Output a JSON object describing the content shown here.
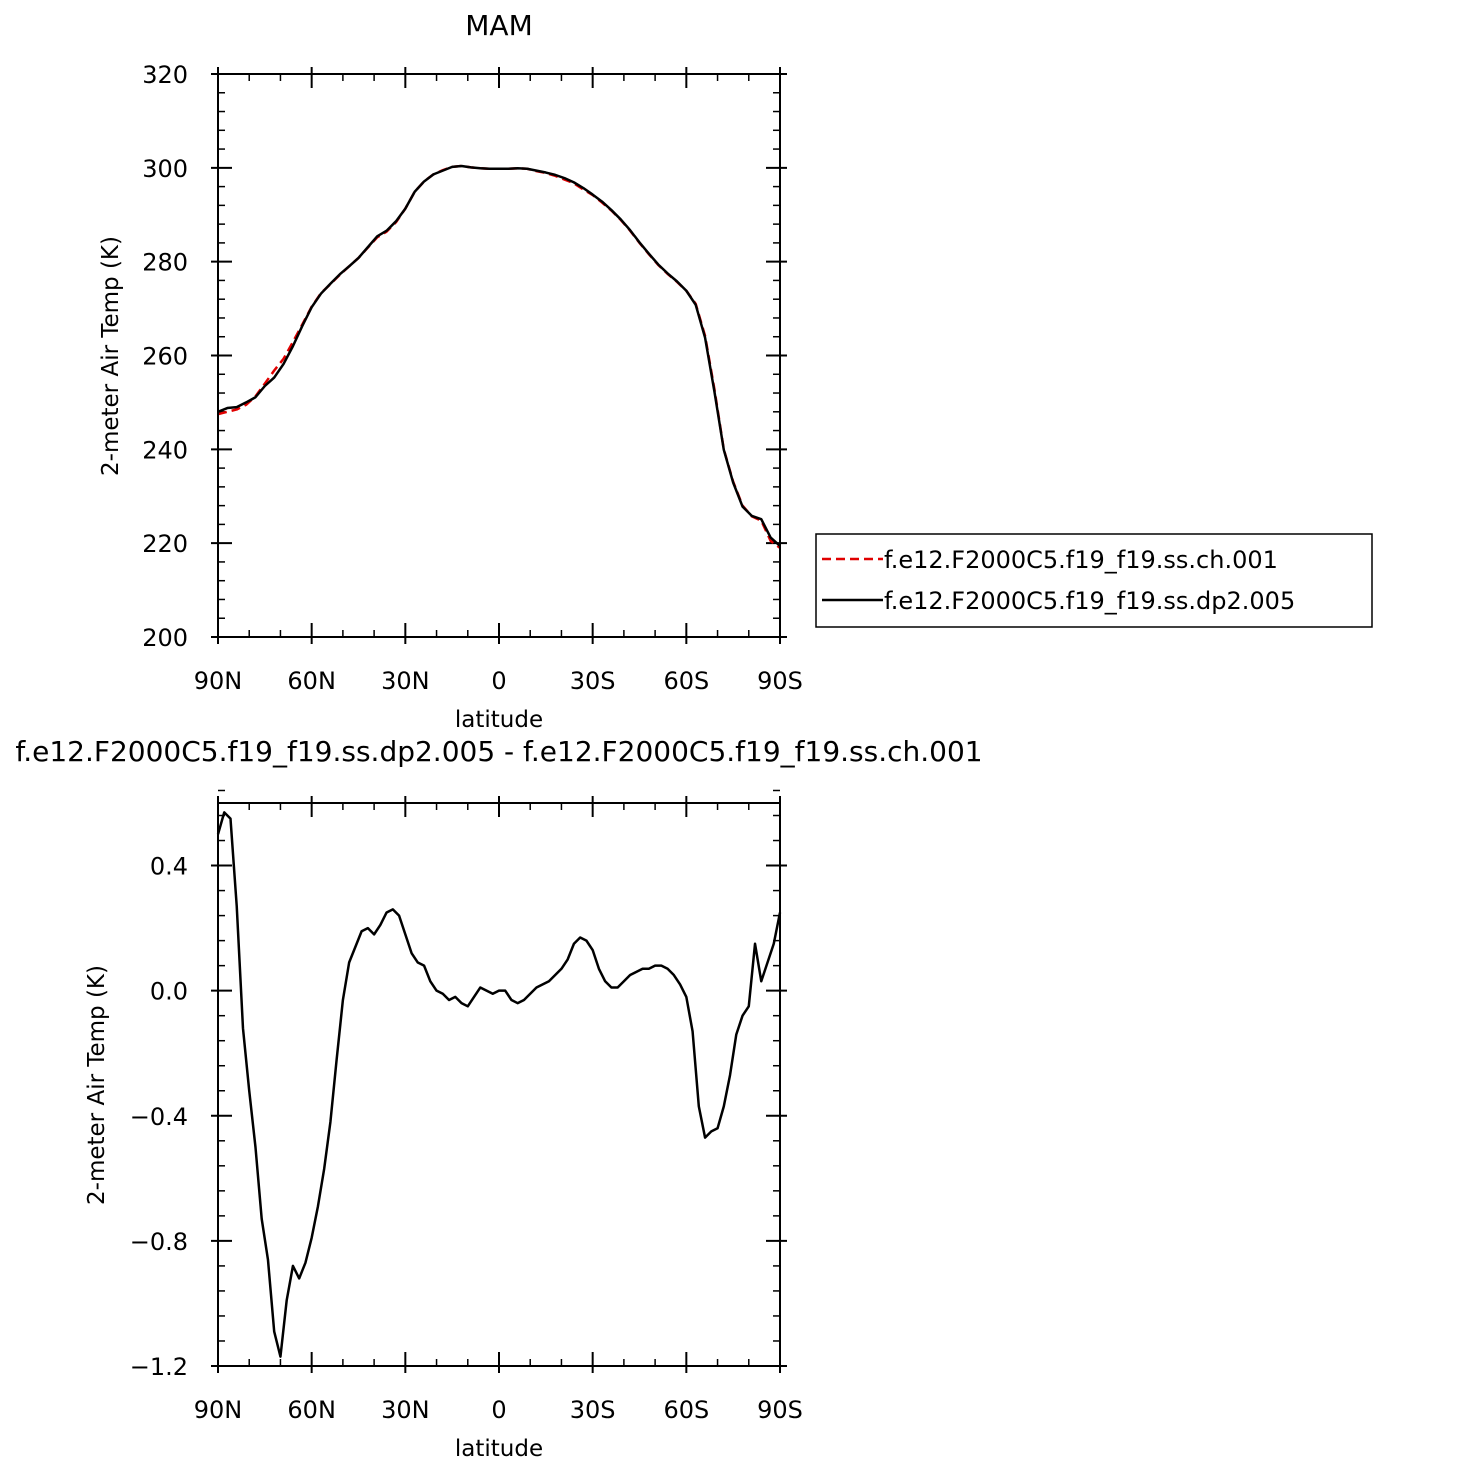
{
  "chart_data": [
    {
      "type": "line",
      "title": "MAM",
      "xlabel": "latitude",
      "ylabel": "2-meter Air Temp (K)",
      "xlim": [
        90,
        -90
      ],
      "ylim": [
        200,
        320
      ],
      "xticks": [
        {
          "value": 90,
          "label": "90N"
        },
        {
          "value": 60,
          "label": "60N"
        },
        {
          "value": 30,
          "label": "30N"
        },
        {
          "value": 0,
          "label": "0"
        },
        {
          "value": -30,
          "label": "30S"
        },
        {
          "value": -60,
          "label": "60S"
        },
        {
          "value": -90,
          "label": "90S"
        }
      ],
      "yticks": [
        {
          "value": 200,
          "label": "200"
        },
        {
          "value": 220,
          "label": "220"
        },
        {
          "value": 240,
          "label": "240"
        },
        {
          "value": 260,
          "label": "260"
        },
        {
          "value": 280,
          "label": "280"
        },
        {
          "value": 300,
          "label": "300"
        },
        {
          "value": 320,
          "label": "320"
        }
      ],
      "legend_position": "right",
      "series": [
        {
          "name": "f.e12.F2000C5.f19_f19.ss.ch.001",
          "color": "#e00000",
          "dash": "dashed",
          "x": [
            90,
            87,
            84,
            81,
            78,
            75,
            72,
            69,
            66,
            63,
            60,
            57,
            54,
            51,
            48,
            45,
            42,
            39,
            36,
            33,
            30,
            27,
            24,
            21,
            18,
            15,
            12,
            9,
            6,
            3,
            0,
            -3,
            -6,
            -9,
            -12,
            -15,
            -18,
            -21,
            -24,
            -27,
            -30,
            -33,
            -36,
            -39,
            -42,
            -45,
            -48,
            -51,
            -54,
            -57,
            -60,
            -63,
            -66,
            -69,
            -72,
            -75,
            -78,
            -81,
            -84,
            -87,
            -90
          ],
          "y": [
            247.5,
            248,
            248.5,
            249.5,
            251.3,
            254,
            256.8,
            259.3,
            262.9,
            266.6,
            270.4,
            273.3,
            275.2,
            277.2,
            279,
            280.8,
            283,
            285.2,
            286.4,
            288.4,
            291.3,
            294.9,
            297.1,
            298.6,
            299.5,
            300.2,
            300.4,
            300.1,
            299.9,
            299.8,
            299.8,
            299.8,
            299.9,
            299.8,
            299.3,
            298.9,
            298.3,
            297.5,
            296.7,
            295.4,
            294.2,
            292.6,
            290.9,
            288.9,
            286.6,
            284,
            281.6,
            279.3,
            277.4,
            275.7,
            273.8,
            271,
            264.2,
            252.8,
            240,
            233.1,
            228,
            225.7,
            224.8,
            220.5,
            219
          ]
        },
        {
          "name": "f.e12.F2000C5.f19_f19.ss.dp2.005",
          "color": "#000000",
          "dash": "solid",
          "x": [
            90,
            87,
            84,
            81,
            78,
            75,
            72,
            69,
            66,
            63,
            60,
            57,
            54,
            51,
            48,
            45,
            42,
            39,
            36,
            33,
            30,
            27,
            24,
            21,
            18,
            15,
            12,
            9,
            6,
            3,
            0,
            -3,
            -6,
            -9,
            -12,
            -15,
            -18,
            -21,
            -24,
            -27,
            -30,
            -33,
            -36,
            -39,
            -42,
            -45,
            -48,
            -51,
            -54,
            -57,
            -60,
            -63,
            -66,
            -69,
            -72,
            -75,
            -78,
            -81,
            -84,
            -87,
            -90
          ],
          "y": [
            248,
            248.8,
            249,
            250,
            251.1,
            253.5,
            255.3,
            258.2,
            262,
            266.3,
            270.3,
            273.2,
            275.3,
            277.3,
            279,
            280.8,
            283.1,
            285.4,
            286.6,
            288.6,
            291.3,
            294.9,
            297.1,
            298.6,
            299.4,
            300.2,
            300.4,
            300.1,
            299.9,
            299.8,
            299.8,
            299.8,
            299.9,
            299.8,
            299.4,
            299,
            298.5,
            297.8,
            296.9,
            295.7,
            294.3,
            292.8,
            291,
            289,
            286.7,
            284.1,
            281.7,
            279.4,
            277.5,
            275.8,
            273.8,
            270.8,
            263.8,
            252.3,
            239.9,
            232.9,
            227.8,
            225.8,
            225.1,
            221.2,
            219.4
          ]
        }
      ]
    },
    {
      "type": "line",
      "title": "f.e12.F2000C5.f19_f19.ss.dp2.005 - f.e12.F2000C5.f19_f19.ss.ch.001",
      "xlabel": "latitude",
      "ylabel": "2-meter Air Temp (K)",
      "xlim": [
        90,
        -90
      ],
      "ylim": [
        -1.2,
        0.6
      ],
      "xticks": [
        {
          "value": 90,
          "label": "90N"
        },
        {
          "value": 60,
          "label": "60N"
        },
        {
          "value": 30,
          "label": "30N"
        },
        {
          "value": 0,
          "label": "0"
        },
        {
          "value": -30,
          "label": "30S"
        },
        {
          "value": -60,
          "label": "60S"
        },
        {
          "value": -90,
          "label": "90S"
        }
      ],
      "yticks": [
        {
          "value": -1.2,
          "label": "−1.2"
        },
        {
          "value": -0.8,
          "label": "−0.8"
        },
        {
          "value": -0.4,
          "label": "−0.4"
        },
        {
          "value": 0,
          "label": "0.0"
        },
        {
          "value": 0.4,
          "label": "0.4"
        }
      ],
      "series": [
        {
          "color": "#000000",
          "dash": "solid",
          "x": [
            90,
            88,
            86,
            84,
            82,
            80,
            78,
            76,
            74,
            72,
            70,
            68,
            66,
            64,
            62,
            60,
            58,
            56,
            54,
            52,
            50,
            48,
            46,
            44,
            42,
            40,
            38,
            36,
            34,
            32,
            30,
            28,
            26,
            24,
            22,
            20,
            18,
            16,
            14,
            12,
            10,
            8,
            6,
            4,
            2,
            0,
            -2,
            -4,
            -6,
            -8,
            -10,
            -12,
            -14,
            -16,
            -18,
            -20,
            -22,
            -24,
            -26,
            -28,
            -30,
            -32,
            -34,
            -36,
            -38,
            -40,
            -42,
            -44,
            -46,
            -48,
            -50,
            -52,
            -54,
            -56,
            -58,
            -60,
            -62,
            -64,
            -66,
            -68,
            -70,
            -72,
            -74,
            -76,
            -78,
            -80,
            -82,
            -84,
            -86,
            -88,
            -90
          ],
          "y": [
            0.5,
            0.57,
            0.55,
            0.27,
            -0.12,
            -0.32,
            -0.5,
            -0.73,
            -0.86,
            -1.09,
            -1.17,
            -0.99,
            -0.88,
            -0.92,
            -0.87,
            -0.79,
            -0.69,
            -0.57,
            -0.42,
            -0.22,
            -0.03,
            0.09,
            0.14,
            0.19,
            0.2,
            0.18,
            0.21,
            0.25,
            0.26,
            0.24,
            0.18,
            0.12,
            0.09,
            0.08,
            0.03,
            0.0,
            -0.01,
            -0.03,
            -0.02,
            -0.04,
            -0.05,
            -0.02,
            0.01,
            0.0,
            -0.01,
            0.0,
            0.0,
            -0.03,
            -0.04,
            -0.03,
            -0.01,
            0.01,
            0.02,
            0.03,
            0.05,
            0.07,
            0.1,
            0.15,
            0.17,
            0.16,
            0.13,
            0.07,
            0.03,
            0.01,
            0.01,
            0.03,
            0.05,
            0.06,
            0.07,
            0.07,
            0.08,
            0.08,
            0.07,
            0.05,
            0.02,
            -0.02,
            -0.13,
            -0.37,
            -0.47,
            -0.45,
            -0.44,
            -0.37,
            -0.27,
            -0.14,
            -0.08,
            -0.05,
            0.15,
            0.03,
            0.09,
            0.15,
            0.25
          ]
        }
      ]
    }
  ]
}
